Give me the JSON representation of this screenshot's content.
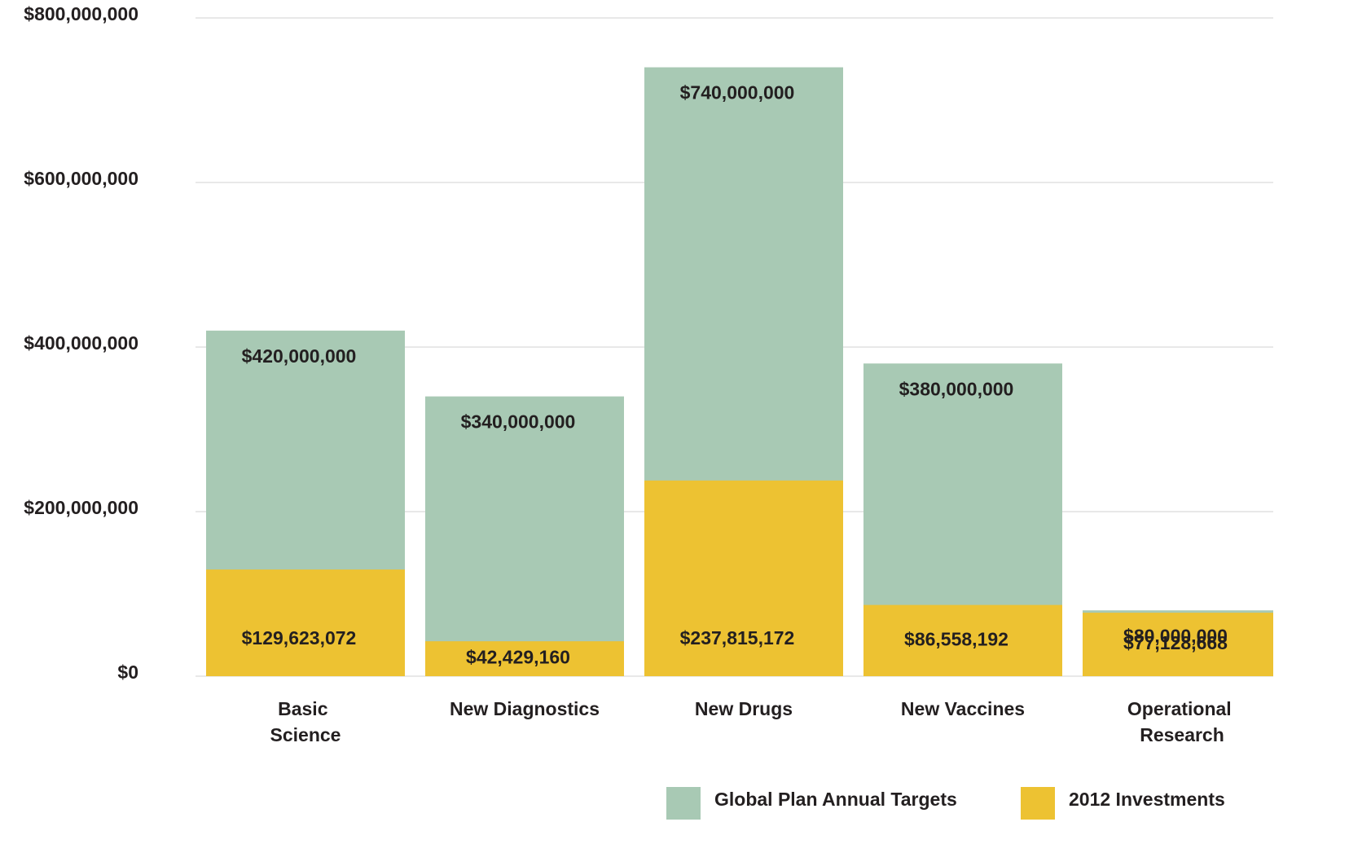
{
  "chart_data": {
    "type": "bar",
    "categories": [
      "Basic Science",
      "New Diagnostics",
      "New Drugs",
      "New Vaccines",
      "Operational Research"
    ],
    "series": [
      {
        "name": "Global Plan Annual Targets",
        "color": "#a8c9b4",
        "values": [
          420000000,
          340000000,
          740000000,
          380000000,
          80000000
        ],
        "value_labels": [
          "$420,000,000",
          "$340,000,000",
          "$740,000,000",
          "$380,000,000",
          "$80,000,000"
        ]
      },
      {
        "name": "2012 Investments",
        "color": "#edc232",
        "values": [
          129623072,
          42429160,
          237815172,
          86558192,
          77128668
        ],
        "value_labels": [
          "$129,623,072",
          "$42,429,160",
          "$237,815,172",
          "$86,558,192",
          "$77,128,668"
        ]
      }
    ],
    "ylim": [
      0,
      800000000
    ],
    "yticks": [
      {
        "value": 0,
        "label": "$0"
      },
      {
        "value": 200000000,
        "label": "$200,000,000"
      },
      {
        "value": 400000000,
        "label": "$400,000,000"
      },
      {
        "value": 600000000,
        "label": "$600,000,000"
      },
      {
        "value": 800000000,
        "label": "$800,000,000"
      }
    ],
    "grid": true,
    "legend": "bottom"
  }
}
